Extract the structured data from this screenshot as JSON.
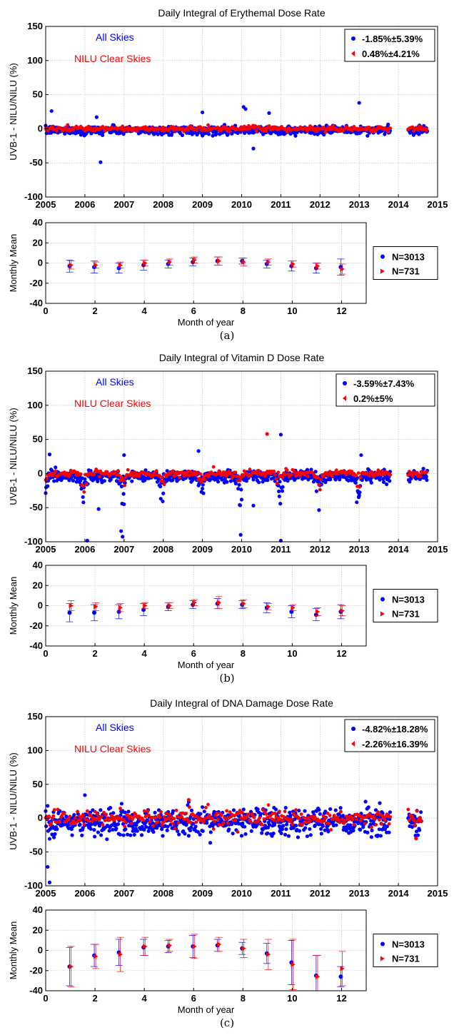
{
  "chart_data": [
    {
      "type": "scatter",
      "title": "Daily Integral of Erythemal Dose Rate",
      "ylabel": "UVB-1 - NILU/NILU (%)",
      "xlabel": "",
      "xlim": [
        2005,
        2015
      ],
      "ylim": [
        -100,
        150
      ],
      "xticks": [
        "2005",
        "2006",
        "2007",
        "2008",
        "2009",
        "2010",
        "2011",
        "2012",
        "2013",
        "2014",
        "2015"
      ],
      "yticks": [
        "150",
        "100",
        "50",
        "0",
        "-50",
        "-100"
      ],
      "grid": true,
      "annotations": [
        {
          "text": "All Skies",
          "color": "#0000ff"
        },
        {
          "text": "NILU Clear Skies",
          "color": "#ff0000"
        }
      ],
      "legend": {
        "placement": "top-right",
        "entries": [
          "-1.85%±5.39%",
          "0.48%±4.21%"
        ]
      },
      "series": [
        {
          "color": "#0000ff",
          "description": "all skies daily points",
          "outliers": [
            [
              2005.15,
              26
            ],
            [
              2006.3,
              17
            ],
            [
              2006.4,
              -49
            ],
            [
              2009.0,
              24
            ],
            [
              2010.05,
              32
            ],
            [
              2010.1,
              29
            ],
            [
              2010.3,
              -29
            ],
            [
              2010.7,
              23
            ],
            [
              2013.0,
              38
            ]
          ]
        },
        {
          "color": "#ff0000",
          "description": "clear skies daily points",
          "outliers": [
            [
              2010.7,
              4
            ]
          ]
        }
      ],
      "coverage": [
        [
          2005.0,
          2013.8
        ],
        [
          2014.25,
          2014.75
        ]
      ],
      "mean": -1.85,
      "std": 5.39
    },
    {
      "type": "scatter",
      "ylabel": "Monthly Mean",
      "xlabel": "Month of year",
      "xlim": [
        0,
        13
      ],
      "ylim": [
        -40,
        40
      ],
      "xticks": [
        "0",
        "2",
        "4",
        "6",
        "8",
        "10",
        "12"
      ],
      "yticks": [
        "40",
        "20",
        "0",
        "-20",
        "-40"
      ],
      "grid": true,
      "legend": {
        "placement": "right",
        "entries": [
          "N=3013",
          "N=731"
        ]
      },
      "series": [
        {
          "name": "N=3013",
          "color": "#0000ff",
          "x": [
            1,
            2,
            3,
            4,
            5,
            6,
            7,
            8,
            9,
            10,
            11,
            12
          ],
          "y": [
            -3,
            -4,
            -5,
            -2,
            -1,
            1,
            2,
            2,
            -1,
            -3,
            -5,
            -4
          ],
          "err": [
            6,
            6,
            5,
            5,
            4,
            4,
            4,
            3,
            4,
            5,
            5,
            8
          ]
        },
        {
          "name": "N=731",
          "color": "#ff0000",
          "x": [
            1,
            2,
            3,
            4,
            5,
            6,
            7,
            8,
            9,
            10,
            11,
            12
          ],
          "y": [
            -2,
            -2,
            -2,
            0,
            1,
            3,
            2,
            1,
            1,
            -1,
            -3,
            -6
          ],
          "err": [
            4,
            3,
            3,
            3,
            3,
            3,
            4,
            4,
            3,
            3,
            3,
            5
          ]
        }
      ]
    },
    {
      "type": "scatter",
      "title": "Daily Integral of Vitamin D Dose Rate",
      "ylabel": "UVB-1 - NILU/NILU (%)",
      "xlabel": "",
      "xlim": [
        2005,
        2015
      ],
      "ylim": [
        -100,
        150
      ],
      "xticks": [
        "2005",
        "2006",
        "2007",
        "2008",
        "2009",
        "2010",
        "2011",
        "2012",
        "2013",
        "2014",
        "2015"
      ],
      "yticks": [
        "150",
        "100",
        "50",
        "0",
        "-50",
        "-100"
      ],
      "grid": true,
      "annotations": [
        {
          "text": "All Skies",
          "color": "#0000ff"
        },
        {
          "text": "NILU Clear Skies",
          "color": "#ff0000"
        }
      ],
      "legend": {
        "placement": "top-right",
        "entries": [
          "-3.59%±7.43%",
          "0.2%±5%"
        ]
      },
      "series": [
        {
          "color": "#0000ff",
          "description": "all skies daily points",
          "outliers": [
            [
              2005.1,
              28
            ],
            [
              2006.35,
              -52
            ],
            [
              2007.0,
              27
            ],
            [
              2008.9,
              33
            ],
            [
              2010.3,
              -47
            ],
            [
              2011.0,
              57
            ],
            [
              2013.05,
              27
            ]
          ]
        },
        {
          "color": "#ff0000",
          "description": "clear skies daily points",
          "outliers": [
            [
              2010.65,
              58
            ]
          ]
        }
      ],
      "coverage": [
        [
          2005.0,
          2013.8
        ],
        [
          2014.25,
          2014.75
        ]
      ],
      "mean": -3.59,
      "std": 7.43
    },
    {
      "type": "scatter",
      "ylabel": "Monthly Mean",
      "xlabel": "Month of year",
      "xlim": [
        0,
        13
      ],
      "ylim": [
        -40,
        40
      ],
      "xticks": [
        "0",
        "2",
        "4",
        "6",
        "8",
        "10",
        "12"
      ],
      "yticks": [
        "40",
        "20",
        "0",
        "-20",
        "-40"
      ],
      "grid": true,
      "legend": {
        "placement": "right",
        "entries": [
          "N=3013",
          "N=731"
        ]
      },
      "series": [
        {
          "name": "N=3013",
          "color": "#0000ff",
          "x": [
            1,
            2,
            3,
            4,
            5,
            6,
            7,
            8,
            9,
            10,
            11,
            12
          ],
          "y": [
            -7,
            -7,
            -6,
            -4,
            -1,
            1,
            2,
            1,
            -2,
            -6,
            -9,
            -6
          ],
          "err": [
            9,
            8,
            7,
            6,
            4,
            4,
            5,
            4,
            5,
            6,
            6,
            7
          ]
        },
        {
          "name": "N=731",
          "color": "#ff0000",
          "x": [
            1,
            2,
            3,
            4,
            5,
            6,
            7,
            8,
            9,
            10,
            11,
            12
          ],
          "y": [
            0,
            -1,
            -2,
            0,
            0,
            3,
            3,
            2,
            -1,
            -2,
            -6,
            -5
          ],
          "err": [
            5,
            4,
            4,
            3,
            3,
            3,
            6,
            4,
            3,
            3,
            4,
            5
          ]
        }
      ]
    },
    {
      "type": "scatter",
      "title": "Daily Integral of DNA Damage Dose Rate",
      "ylabel": "UVB-1 - NILU/NILU (%)",
      "xlabel": "",
      "xlim": [
        2005,
        2015
      ],
      "ylim": [
        -100,
        150
      ],
      "xticks": [
        "2005",
        "2006",
        "2007",
        "2008",
        "2009",
        "2010",
        "2011",
        "2012",
        "2013",
        "2014",
        "2015"
      ],
      "yticks": [
        "150",
        "100",
        "50",
        "0",
        "-50",
        "-100"
      ],
      "grid": true,
      "annotations": [
        {
          "text": "All Skies",
          "color": "#0000ff"
        },
        {
          "text": "NILU Clear Skies",
          "color": "#ff0000"
        }
      ],
      "legend": {
        "placement": "top-right",
        "entries": [
          "-4.82%±18.28%",
          "-2.26%±16.39%"
        ]
      },
      "series": [
        {
          "color": "#0000ff",
          "description": "all skies daily points",
          "outliers": [
            [
              2005.05,
              -72
            ],
            [
              2005.1,
              -95
            ],
            [
              2006.0,
              34
            ],
            [
              2008.65,
              24
            ]
          ]
        },
        {
          "color": "#ff0000",
          "description": "clear skies daily points",
          "outliers": [
            [
              2008.65,
              27
            ],
            [
              2014.45,
              -30
            ]
          ]
        }
      ],
      "coverage": [
        [
          2005.0,
          2013.8
        ],
        [
          2014.25,
          2014.6
        ]
      ],
      "mean": -4.82,
      "std": 18.28
    },
    {
      "type": "scatter",
      "ylabel": "Monthly Mean",
      "xlabel": "Month of year",
      "xlim": [
        0,
        13
      ],
      "ylim": [
        -40,
        40
      ],
      "xticks": [
        "0",
        "2",
        "4",
        "6",
        "8",
        "10",
        "12"
      ],
      "yticks": [
        "40",
        "20",
        "0",
        "-20",
        "-40"
      ],
      "grid": true,
      "legend": {
        "placement": "right",
        "entries": [
          "N=3013",
          "N=731"
        ]
      },
      "series": [
        {
          "name": "N=3013",
          "color": "#0000ff",
          "x": [
            1,
            2,
            3,
            4,
            5,
            6,
            7,
            8,
            9,
            10,
            11,
            12
          ],
          "y": [
            -16,
            -5,
            -2,
            3,
            4,
            4,
            5,
            2,
            -3,
            -12,
            -25,
            -26
          ],
          "err": [
            19,
            11,
            13,
            8,
            6,
            11,
            6,
            6,
            10,
            22,
            20,
            10
          ]
        },
        {
          "name": "N=731",
          "color": "#ff0000",
          "x": [
            1,
            2,
            3,
            4,
            5,
            6,
            7,
            8,
            9,
            10,
            11,
            12
          ],
          "y": [
            -16,
            -6,
            -4,
            4,
            5,
            4,
            6,
            2,
            -4,
            -14,
            -26,
            -18
          ],
          "err": [
            20,
            12,
            17,
            9,
            6,
            12,
            7,
            9,
            15,
            25,
            21,
            17
          ]
        }
      ]
    }
  ],
  "captions": [
    "(a)",
    "(b)",
    "(c)"
  ]
}
